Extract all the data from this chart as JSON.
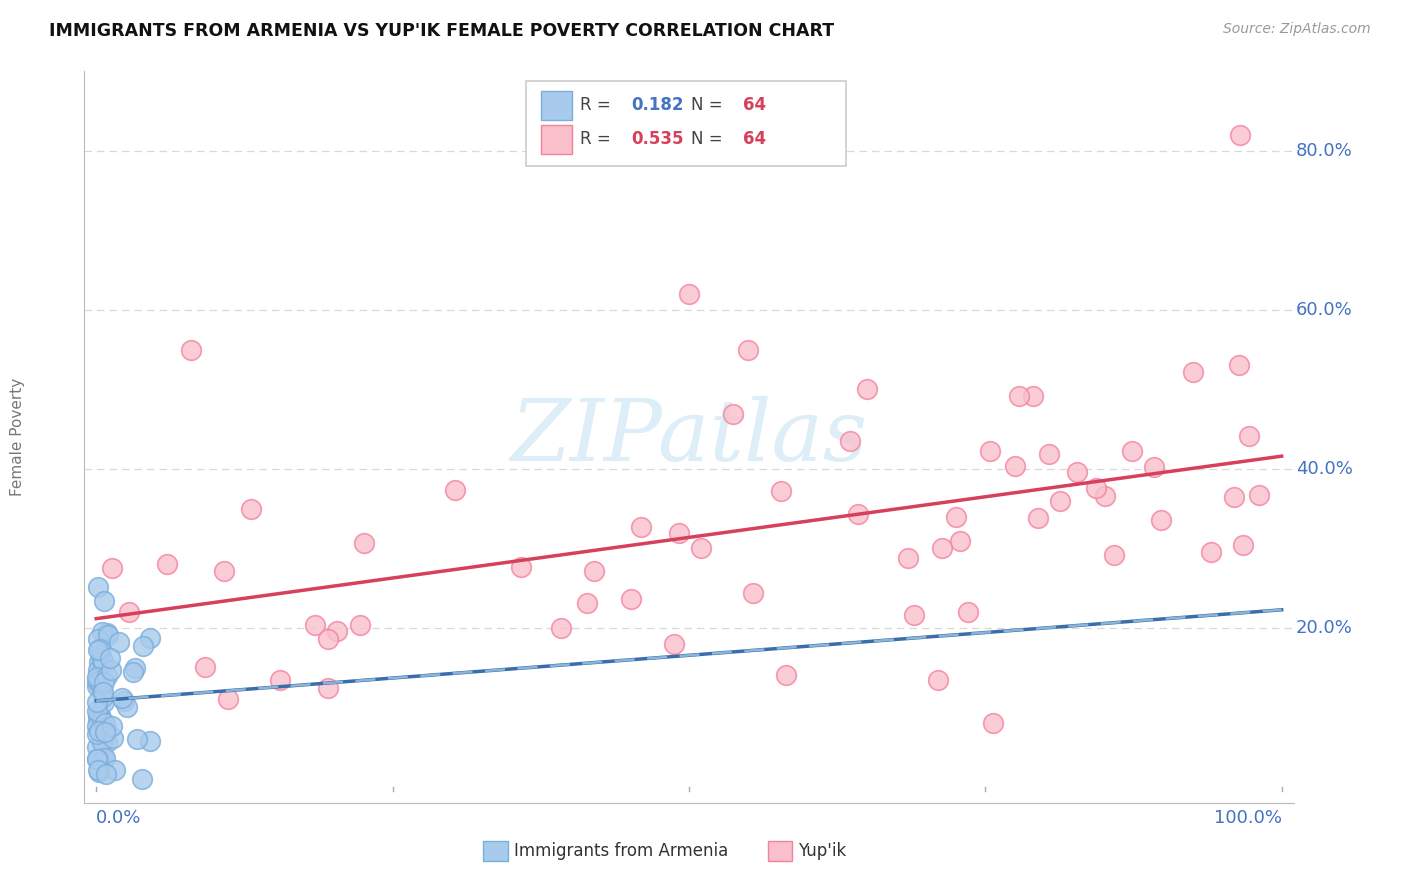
{
  "title": "IMMIGRANTS FROM ARMENIA VS YUP'IK FEMALE POVERTY CORRELATION CHART",
  "source": "Source: ZipAtlas.com",
  "ylabel": "Female Poverty",
  "legend_blue_r": "0.182",
  "legend_blue_n": "64",
  "legend_pink_r": "0.535",
  "legend_pink_n": "64",
  "blue_scatter_face": "#a8caec",
  "blue_scatter_edge": "#7aaedb",
  "pink_scatter_face": "#f9c0cc",
  "pink_scatter_edge": "#f4829f",
  "blue_line_color": "#3a6eaa",
  "pink_line_color": "#d6405a",
  "dashed_line_color": "#8ab4d8",
  "grid_color": "#d8d8d8",
  "axis_label_color": "#4472c4",
  "title_color": "#111111",
  "source_color": "#999999",
  "watermark_color": "#ddeef8",
  "ylabel_color": "#777777",
  "xlim": [
    0.0,
    1.0
  ],
  "ylim": [
    0.0,
    0.9
  ],
  "grid_lines": [
    0.2,
    0.4,
    0.6,
    0.8
  ],
  "xtick_positions": [
    0.0,
    0.25,
    0.5,
    0.75,
    1.0
  ],
  "right_labels": [
    [
      "80.0%",
      0.8
    ],
    [
      "60.0%",
      0.6
    ],
    [
      "40.0%",
      0.4
    ],
    [
      "20.0%",
      0.2
    ]
  ],
  "arm_seed": 7,
  "yup_seed": 42
}
